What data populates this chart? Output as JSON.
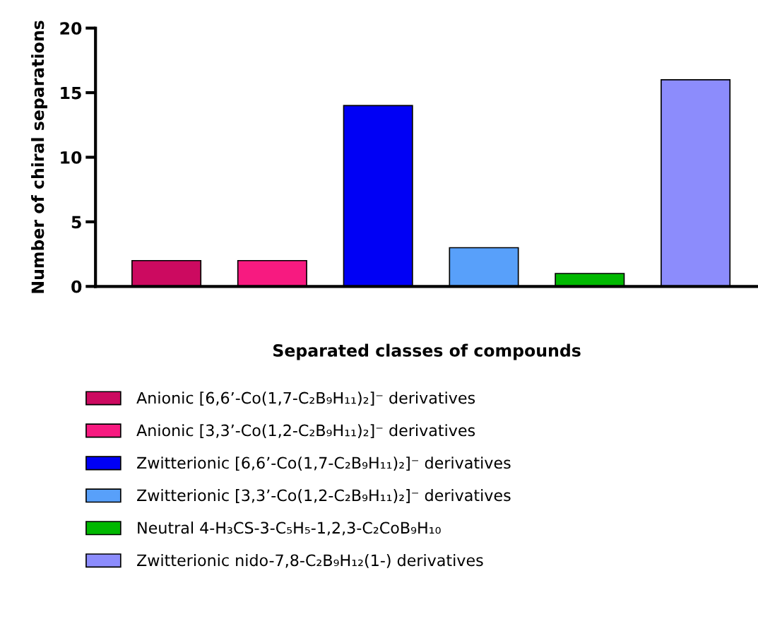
{
  "chart_data": {
    "type": "bar",
    "xlabel": "Separated classes of compounds",
    "ylabel": "Number of chiral separations",
    "categories": [
      null,
      null,
      null,
      null,
      null,
      null
    ],
    "series": [
      {
        "name": "Anionic [6,6’-Co(1,7-C₂B₉H₁₁)₂]⁻ derivatives",
        "color": "#cc0a60",
        "values": [
          2,
          null,
          null,
          null,
          null,
          null
        ]
      },
      {
        "name": "Anionic [3,3’-Co(1,2-C₂B₉H₁₁)₂]⁻ derivatives",
        "color": "#f71a80",
        "values": [
          null,
          2,
          null,
          null,
          null,
          null
        ]
      },
      {
        "name": "Zwitterionic [6,6’-Co(1,7-C₂B₉H₁₁)₂]⁻ derivatives",
        "color": "#0000f5",
        "values": [
          null,
          null,
          14,
          null,
          null,
          null
        ]
      },
      {
        "name": "Zwitterionic [3,3’-Co(1,2-C₂B₉H₁₁)₂]⁻ derivatives",
        "color": "#58a0fa",
        "values": [
          null,
          null,
          null,
          3,
          null,
          null
        ]
      },
      {
        "name": "Neutral 4-H₃CS-3-C₅H₅-1,2,3-C₂CoB₉H₁₀",
        "color": "#00b800",
        "values": [
          null,
          null,
          null,
          null,
          1,
          null
        ]
      },
      {
        "name": "Zwitterionic nido-7,8-C₂B₉H₁₂(1-) derivatives",
        "color": "#8c8cfc",
        "values": [
          null,
          null,
          null,
          null,
          null,
          16
        ]
      }
    ],
    "ylim": [
      0,
      20
    ],
    "yticks": [
      0,
      5,
      10,
      15,
      20
    ],
    "grid": false,
    "legend": "bottom left"
  }
}
